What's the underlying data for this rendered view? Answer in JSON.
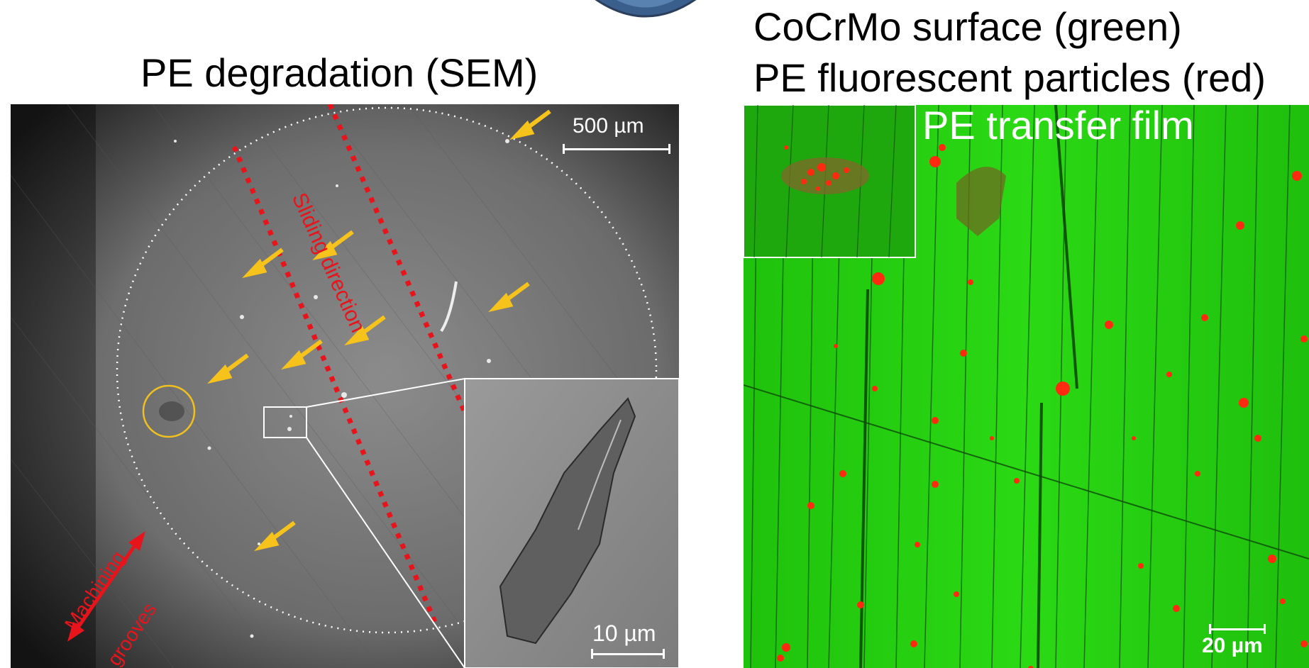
{
  "left_panel": {
    "title": "PE degradation (SEM)",
    "scale_bar": "500 µm",
    "inset_scale_bar": "10 µm",
    "sliding_label": "Sliding direction",
    "grooves_label_line1": "Machining",
    "grooves_label_line2": "grooves",
    "colors": {
      "arrow": "#f6c21c",
      "dotted_line": "#e8141c",
      "label": "#e8141c",
      "circle": "#f0c020"
    }
  },
  "right_panel": {
    "title_line1": "CoCrMo surface (green)",
    "title_line2": "PE fluorescent particles (red)",
    "inset_label": "PE transfer film",
    "scale_bar": "20 µm",
    "colors": {
      "surface": "#27d311",
      "particles": "#ff2a10"
    }
  }
}
